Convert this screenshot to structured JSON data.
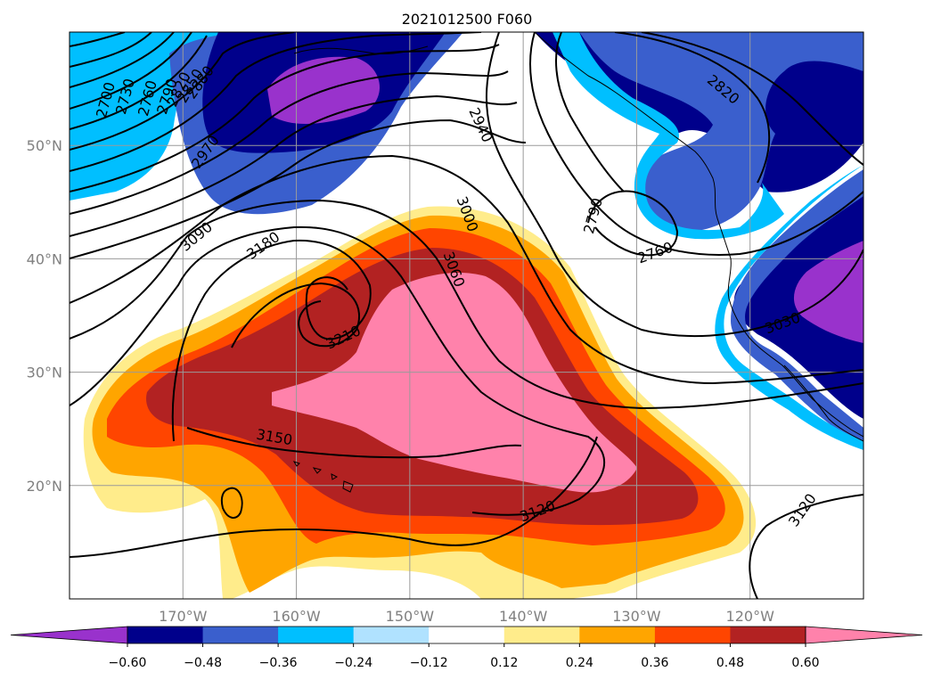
{
  "chart_data": {
    "type": "heatmap",
    "title": "2021012500 F060",
    "projection": "map",
    "lon_range": [
      -180,
      -110
    ],
    "lat_range": [
      10,
      60
    ],
    "x_ticks": [
      "170°W",
      "160°W",
      "150°W",
      "140°W",
      "130°W",
      "120°W"
    ],
    "y_ticks": [
      "50°N",
      "40°N",
      "30°N",
      "20°N"
    ],
    "grid": true,
    "colorbar": {
      "ticks": [
        "−0.60",
        "−0.48",
        "−0.36",
        "−0.24",
        "−0.12",
        "0.12",
        "0.24",
        "0.36",
        "0.48",
        "0.60"
      ],
      "levels": [
        -0.6,
        -0.48,
        -0.36,
        -0.24,
        -0.12,
        0.12,
        0.24,
        0.36,
        0.48,
        0.6
      ],
      "colors": [
        "#9932CC",
        "#00008B",
        "#3A5FCD",
        "#00BFFF",
        "#B0E2FF",
        "#FFFFFF",
        "#FFEC8B",
        "#FFA500",
        "#FF4500",
        "#B22222",
        "#FF82AB"
      ],
      "extend": "both"
    },
    "contour_labels": [
      "2700",
      "2730",
      "2760",
      "2790",
      "2820",
      "2850",
      "2880",
      "2970",
      "3090",
      "3180",
      "3210",
      "3150",
      "3120",
      "2940",
      "3000",
      "3060",
      "2790",
      "2760",
      "2820",
      "3030",
      "3120"
    ]
  }
}
